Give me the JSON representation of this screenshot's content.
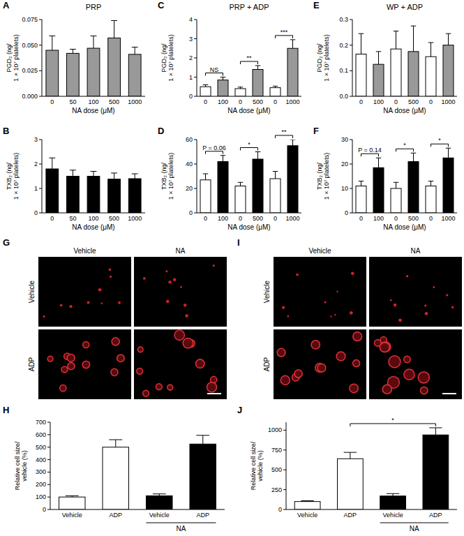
{
  "chart_data": [
    {
      "panel_label": "A",
      "type": "bar",
      "title": "PRP",
      "categories": [
        "0",
        "50",
        "100",
        "500",
        "1000"
      ],
      "values": [
        0.045,
        0.042,
        0.047,
        0.057,
        0.041
      ],
      "errors": [
        0.014,
        0.004,
        0.012,
        0.017,
        0.007
      ],
      "color": "#999999",
      "ylabel": "PGD₂ (ng/ 1 × 10⁷ platelets)",
      "xlabel": "NA dose (μM)",
      "ylim": [
        0,
        0.075
      ],
      "yticks": [
        {
          "value": 0,
          "label": "0.000"
        },
        {
          "value": 0.025,
          "label": "0.025"
        },
        {
          "value": 0.05,
          "label": "0.050"
        },
        {
          "value": 0.075,
          "label": "0.075"
        }
      ]
    },
    {
      "panel_label": "B",
      "type": "bar",
      "categories": [
        "0",
        "50",
        "100",
        "500",
        "1000"
      ],
      "values": [
        1.8,
        1.5,
        1.5,
        1.38,
        1.4
      ],
      "errors": [
        0.45,
        0.25,
        0.2,
        0.25,
        0.2
      ],
      "color": "#000000",
      "ylabel": "TXB₂ (ng/ 1 × 10⁷ platelets)",
      "xlabel": "NA dose (μM)",
      "ylim": [
        0,
        3
      ],
      "yticks": [
        0,
        1,
        2,
        3
      ]
    },
    {
      "panel_label": "C",
      "type": "bar",
      "title": "PRP + ADP",
      "categories": [
        "0",
        "100",
        "0",
        "500",
        "0",
        "1000"
      ],
      "values": [
        0.5,
        0.85,
        0.4,
        1.4,
        0.45,
        2.5
      ],
      "errors": [
        0.1,
        0.15,
        0.08,
        0.2,
        0.08,
        0.45
      ],
      "colors": [
        "#ffffff",
        "#999999",
        "#ffffff",
        "#999999",
        "#ffffff",
        "#999999"
      ],
      "ylabel": "PGD₂ (ng/ 1 × 10⁷ platelets)",
      "xlabel": "NA dose (μM)",
      "ylim": [
        0,
        4
      ],
      "yticks": [
        0,
        1,
        2,
        3,
        4
      ],
      "annotations": [
        {
          "text": "NS",
          "between": [
            0,
            1
          ]
        },
        {
          "text": "**",
          "between": [
            2,
            3
          ]
        },
        {
          "text": "***",
          "between": [
            4,
            5
          ]
        }
      ]
    },
    {
      "panel_label": "D",
      "type": "bar",
      "categories": [
        "0",
        "100",
        "0",
        "500",
        "0",
        "1000"
      ],
      "values": [
        27,
        42,
        22,
        44,
        28,
        55
      ],
      "errors": [
        5,
        5,
        3,
        6,
        6,
        5
      ],
      "colors": [
        "#ffffff",
        "#000000",
        "#ffffff",
        "#000000",
        "#ffffff",
        "#000000"
      ],
      "ylabel": "TXB₂ (ng/ 1 × 10⁷ platelets)",
      "xlabel": "NA dose (μM)",
      "ylim": [
        0,
        60
      ],
      "yticks": [
        0,
        20,
        40,
        60
      ],
      "annotations": [
        {
          "text": "P = 0.06",
          "between": [
            0,
            1
          ]
        },
        {
          "text": "*",
          "between": [
            2,
            3
          ]
        },
        {
          "text": "**",
          "between": [
            4,
            5
          ]
        }
      ]
    },
    {
      "panel_label": "E",
      "type": "bar",
      "title": "WP + ADP",
      "categories": [
        "0",
        "100",
        "0",
        "500",
        "0",
        "1000"
      ],
      "values": [
        0.165,
        0.125,
        0.185,
        0.175,
        0.155,
        0.2
      ],
      "errors": [
        0.08,
        0.05,
        0.07,
        0.1,
        0.055,
        0.045
      ],
      "colors": [
        "#ffffff",
        "#999999",
        "#ffffff",
        "#999999",
        "#ffffff",
        "#999999"
      ],
      "ylabel": "PGD₂ (ng/ 1 × 10⁷ platelets)",
      "xlabel": "NA dose (μM)",
      "ylim": [
        0,
        0.3
      ],
      "yticks": [
        {
          "value": 0,
          "label": "0.0"
        },
        {
          "value": 0.1,
          "label": "0.1"
        },
        {
          "value": 0.2,
          "label": "0.2"
        },
        {
          "value": 0.3,
          "label": "0.3"
        }
      ]
    },
    {
      "panel_label": "F",
      "type": "bar",
      "categories": [
        "0",
        "100",
        "0",
        "500",
        "0",
        "1000"
      ],
      "values": [
        11,
        18.5,
        10,
        21,
        11,
        22.5
      ],
      "errors": [
        2,
        4,
        2.5,
        3.5,
        2,
        4
      ],
      "colors": [
        "#ffffff",
        "#000000",
        "#ffffff",
        "#000000",
        "#ffffff",
        "#000000"
      ],
      "ylabel": "TXB₂ (ng/ 1 × 10⁷ platelets)",
      "xlabel": "NA dose (μM)",
      "ylim": [
        0,
        30
      ],
      "yticks": [
        0,
        10,
        20,
        30
      ],
      "annotations": [
        {
          "text": "P = 0.14",
          "between": [
            0,
            1
          ]
        },
        {
          "text": "*",
          "between": [
            2,
            3
          ]
        },
        {
          "text": "*",
          "between": [
            4,
            5
          ]
        }
      ]
    },
    {
      "panel_label": "H",
      "type": "bar",
      "categories": [
        "Vehicle",
        "ADP",
        "Vehicle",
        "ADP"
      ],
      "values": [
        100,
        500,
        110,
        525
      ],
      "errors": [
        10,
        60,
        15,
        70
      ],
      "colors": [
        "#ffffff",
        "#ffffff",
        "#000000",
        "#000000"
      ],
      "ylabel": "Relative cell size/ vehicle (%)",
      "ylim": [
        0,
        700
      ],
      "yticks": [
        0,
        100,
        200,
        300,
        400,
        500,
        600,
        700
      ],
      "group_label": {
        "text": "NA",
        "between": [
          2,
          3
        ]
      }
    },
    {
      "panel_label": "J",
      "type": "bar",
      "categories": [
        "Vehicle",
        "ADP",
        "Vehicle",
        "ADP"
      ],
      "values": [
        100,
        640,
        170,
        940
      ],
      "errors": [
        10,
        80,
        30,
        90
      ],
      "colors": [
        "#ffffff",
        "#ffffff",
        "#000000",
        "#000000"
      ],
      "ylabel": "Relative cell size/ vehicle (%)",
      "ylim": [
        0,
        1100
      ],
      "yticks": [
        0,
        250,
        500,
        750,
        1000
      ],
      "group_label": {
        "text": "NA",
        "between": [
          2,
          3
        ]
      },
      "annotations": [
        {
          "text": "*",
          "between": [
            1,
            3
          ]
        }
      ]
    }
  ],
  "images": [
    {
      "panel_label": "G",
      "columns": [
        "Vehicle",
        "NA"
      ],
      "rows": [
        "Vehicle",
        "ADP"
      ]
    },
    {
      "panel_label": "I",
      "columns": [
        "Vehicle",
        "NA"
      ],
      "rows": [
        "Vehicle",
        "ADP"
      ]
    }
  ]
}
